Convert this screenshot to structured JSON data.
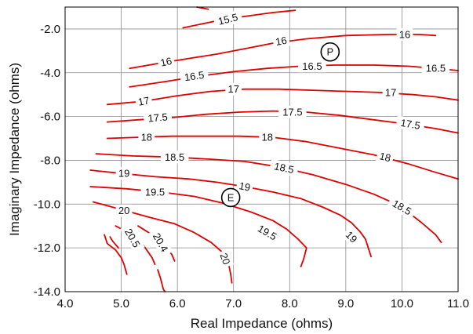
{
  "chart_data": {
    "type": "contour",
    "title": "",
    "xlabel": "Real Impedance (ohms)",
    "ylabel": "Imaginary Impedance (ohms)",
    "xlim": [
      4.0,
      11.0
    ],
    "ylim": [
      -14.0,
      -1.0
    ],
    "x_ticks": [
      "4.0",
      "5.0",
      "6.0",
      "7.0",
      "8.0",
      "9.0",
      "10.0",
      "11.0"
    ],
    "y_ticks": [
      "-2.0",
      "-4.0",
      "-6.0",
      "-8.0",
      "-10.0",
      "-12.0",
      "-14.0"
    ],
    "grid": true,
    "line_color": "#e00000",
    "contours": [
      {
        "level": "15.5",
        "points": [
          [
            6.1,
            -1.95
          ],
          [
            6.85,
            -1.55
          ],
          [
            7.7,
            -1.25
          ],
          [
            8.1,
            -1.15
          ]
        ],
        "label_at": [
          6.9,
          -1.55
        ],
        "label_angle": -14
      },
      {
        "level": "",
        "points": [
          [
            6.35,
            -1.0
          ],
          [
            6.55,
            -1.1
          ]
        ]
      },
      {
        "level": "16",
        "points": [
          [
            5.15,
            -3.8
          ],
          [
            5.6,
            -3.6
          ],
          [
            6.2,
            -3.35
          ],
          [
            6.7,
            -3.15
          ],
          [
            7.2,
            -2.9
          ],
          [
            7.7,
            -2.65
          ],
          [
            8.3,
            -2.45
          ],
          [
            9.0,
            -2.3
          ],
          [
            9.8,
            -2.25
          ],
          [
            10.3,
            -2.25
          ],
          [
            10.6,
            -2.3
          ]
        ],
        "label_at": [
          5.8,
          -3.5
        ],
        "label_angle": -12
      },
      {
        "level": "16",
        "points": [],
        "label_at": [
          7.85,
          -2.55
        ],
        "label_angle": -10
      },
      {
        "level": "16",
        "points": [],
        "label_at": [
          10.05,
          -2.25
        ],
        "label_angle": 0
      },
      {
        "level": "16.5",
        "points": [
          [
            5.15,
            -4.65
          ],
          [
            5.8,
            -4.4
          ],
          [
            6.4,
            -4.15
          ],
          [
            7.0,
            -3.95
          ],
          [
            7.6,
            -3.8
          ],
          [
            8.2,
            -3.7
          ],
          [
            8.8,
            -3.65
          ],
          [
            9.5,
            -3.65
          ],
          [
            10.1,
            -3.7
          ],
          [
            10.6,
            -3.8
          ],
          [
            11.0,
            -3.9
          ]
        ],
        "label_at": [
          6.3,
          -4.15
        ],
        "label_angle": -8
      },
      {
        "level": "16.5",
        "points": [],
        "label_at": [
          8.4,
          -3.7
        ],
        "label_angle": 0
      },
      {
        "level": "16.5",
        "points": [],
        "label_at": [
          10.6,
          -3.8
        ],
        "label_angle": 0
      },
      {
        "level": "17",
        "points": [
          [
            4.75,
            -5.45
          ],
          [
            5.4,
            -5.3
          ],
          [
            6.0,
            -5.05
          ],
          [
            6.6,
            -4.85
          ],
          [
            7.2,
            -4.75
          ],
          [
            7.8,
            -4.75
          ],
          [
            8.4,
            -4.8
          ],
          [
            9.0,
            -4.85
          ],
          [
            9.6,
            -4.9
          ],
          [
            10.2,
            -5.0
          ],
          [
            10.6,
            -5.1
          ],
          [
            11.0,
            -5.25
          ]
        ],
        "label_at": [
          5.4,
          -5.3
        ],
        "label_angle": -10
      },
      {
        "level": "17",
        "points": [],
        "label_at": [
          7.0,
          -4.75
        ],
        "label_angle": 0
      },
      {
        "level": "17",
        "points": [],
        "label_at": [
          9.8,
          -4.9
        ],
        "label_angle": 0
      },
      {
        "level": "17.5",
        "points": [
          [
            4.75,
            -6.25
          ],
          [
            5.3,
            -6.15
          ],
          [
            5.9,
            -6.05
          ],
          [
            6.5,
            -5.9
          ],
          [
            7.1,
            -5.8
          ],
          [
            7.7,
            -5.75
          ],
          [
            8.3,
            -5.8
          ],
          [
            8.9,
            -5.95
          ],
          [
            9.5,
            -6.15
          ],
          [
            10.1,
            -6.35
          ],
          [
            10.6,
            -6.55
          ],
          [
            11.0,
            -6.75
          ]
        ],
        "label_at": [
          5.65,
          -6.05
        ],
        "label_angle": -5
      },
      {
        "level": "17.5",
        "points": [],
        "label_at": [
          8.05,
          -5.8
        ],
        "label_angle": 0
      },
      {
        "level": "17.5",
        "points": [],
        "label_at": [
          10.15,
          -6.35
        ],
        "label_angle": 10
      },
      {
        "level": "18",
        "points": [
          [
            4.75,
            -7.0
          ],
          [
            5.3,
            -6.95
          ],
          [
            5.9,
            -6.9
          ],
          [
            6.5,
            -6.9
          ],
          [
            7.1,
            -6.9
          ],
          [
            7.7,
            -6.95
          ],
          [
            8.3,
            -7.15
          ],
          [
            8.9,
            -7.45
          ],
          [
            9.5,
            -7.75
          ],
          [
            10.1,
            -8.15
          ],
          [
            10.6,
            -8.55
          ],
          [
            11.0,
            -8.85
          ]
        ],
        "label_at": [
          5.45,
          -6.95
        ],
        "label_angle": 0
      },
      {
        "level": "18",
        "points": [],
        "label_at": [
          7.6,
          -6.95
        ],
        "label_angle": 0
      },
      {
        "level": "18",
        "points": [],
        "label_at": [
          9.7,
          -7.85
        ],
        "label_angle": 14
      },
      {
        "level": "18.5",
        "points": [
          [
            4.55,
            -7.7
          ],
          [
            5.2,
            -7.8
          ],
          [
            5.9,
            -7.85
          ],
          [
            6.6,
            -7.95
          ],
          [
            7.2,
            -8.05
          ],
          [
            7.8,
            -8.3
          ],
          [
            8.4,
            -8.65
          ],
          [
            9.0,
            -9.1
          ],
          [
            9.5,
            -9.55
          ],
          [
            9.85,
            -9.95
          ],
          [
            10.15,
            -10.45
          ],
          [
            10.35,
            -10.85
          ],
          [
            10.6,
            -11.4
          ],
          [
            10.7,
            -11.75
          ]
        ],
        "label_at": [
          5.95,
          -7.85
        ],
        "label_angle": 0
      },
      {
        "level": "18.5",
        "points": [],
        "label_at": [
          7.9,
          -8.35
        ],
        "label_angle": 12
      },
      {
        "level": "18.5",
        "points": [],
        "label_at": [
          10.0,
          -10.15
        ],
        "label_angle": 30
      },
      {
        "level": "19",
        "points": [
          [
            4.45,
            -8.45
          ],
          [
            5.0,
            -8.6
          ],
          [
            5.6,
            -8.75
          ],
          [
            6.2,
            -8.85
          ],
          [
            6.7,
            -9.0
          ],
          [
            7.2,
            -9.2
          ],
          [
            7.7,
            -9.45
          ],
          [
            8.2,
            -9.75
          ],
          [
            8.6,
            -10.15
          ],
          [
            8.9,
            -10.5
          ],
          [
            9.1,
            -10.85
          ],
          [
            9.25,
            -11.25
          ],
          [
            9.35,
            -11.6
          ],
          [
            9.45,
            -12.4
          ]
        ],
        "label_at": [
          5.05,
          -8.6
        ],
        "label_angle": 0
      },
      {
        "level": "19",
        "points": [],
        "label_at": [
          7.2,
          -9.2
        ],
        "label_angle": 12
      },
      {
        "level": "19",
        "points": [],
        "label_at": [
          9.1,
          -11.5
        ],
        "label_angle": 45
      },
      {
        "level": "19.5",
        "points": [
          [
            4.45,
            -9.2
          ],
          [
            5.1,
            -9.3
          ],
          [
            5.7,
            -9.45
          ],
          [
            6.3,
            -9.65
          ],
          [
            6.8,
            -9.95
          ],
          [
            7.3,
            -10.35
          ],
          [
            7.7,
            -10.75
          ],
          [
            7.95,
            -11.15
          ],
          [
            8.15,
            -11.6
          ],
          [
            8.3,
            -12.0
          ],
          [
            8.25,
            -12.5
          ],
          [
            8.2,
            -12.85
          ]
        ],
        "label_at": [
          5.6,
          -9.45
        ],
        "label_angle": 0
      },
      {
        "level": "19.5",
        "points": [],
        "label_at": [
          7.6,
          -11.3
        ],
        "label_angle": 30
      },
      {
        "level": "20",
        "points": [
          [
            4.5,
            -9.9
          ],
          [
            5.0,
            -10.25
          ],
          [
            5.5,
            -10.6
          ],
          [
            5.95,
            -10.9
          ],
          [
            6.3,
            -11.3
          ],
          [
            6.6,
            -11.75
          ],
          [
            6.8,
            -12.2
          ],
          [
            6.9,
            -12.6
          ],
          [
            6.95,
            -13.2
          ],
          [
            6.97,
            -13.6
          ]
        ],
        "label_at": [
          5.05,
          -10.3
        ],
        "label_angle": 0
      },
      {
        "level": "20",
        "points": [],
        "label_at": [
          6.85,
          -12.5
        ],
        "label_angle": 70
      },
      {
        "level": "20.5",
        "points": [
          [
            4.9,
            -11.0
          ],
          [
            5.2,
            -11.4
          ],
          [
            5.4,
            -11.9
          ],
          [
            5.55,
            -12.45
          ],
          [
            5.6,
            -12.75
          ]
        ],
        "label_at": [
          5.2,
          -11.55
        ],
        "label_angle": 60
      },
      {
        "level": "20.4",
        "points": [
          [
            5.3,
            -11.0
          ],
          [
            5.55,
            -11.4
          ],
          [
            5.75,
            -11.85
          ],
          [
            5.9,
            -12.3
          ],
          [
            5.95,
            -12.6
          ]
        ],
        "label_at": [
          5.7,
          -11.75
        ],
        "label_angle": 60
      },
      {
        "level": "",
        "points": [
          [
            4.7,
            -11.4
          ],
          [
            4.75,
            -11.8
          ],
          [
            4.9,
            -12.1
          ],
          [
            5.0,
            -12.45
          ],
          [
            5.05,
            -12.75
          ],
          [
            5.1,
            -13.2
          ]
        ]
      },
      {
        "level": "",
        "points": [
          [
            4.8,
            -11.5
          ],
          [
            4.85,
            -11.7
          ],
          [
            4.95,
            -12.0
          ]
        ]
      },
      {
        "level": "",
        "points": [
          [
            5.65,
            -13.0
          ],
          [
            5.7,
            -13.4
          ],
          [
            5.75,
            -13.9
          ],
          [
            5.78,
            -14.0
          ]
        ]
      }
    ],
    "markers": [
      {
        "label": "P",
        "x": 8.72,
        "y": -3.05
      },
      {
        "label": "E",
        "x": 6.95,
        "y": -9.7
      }
    ]
  }
}
